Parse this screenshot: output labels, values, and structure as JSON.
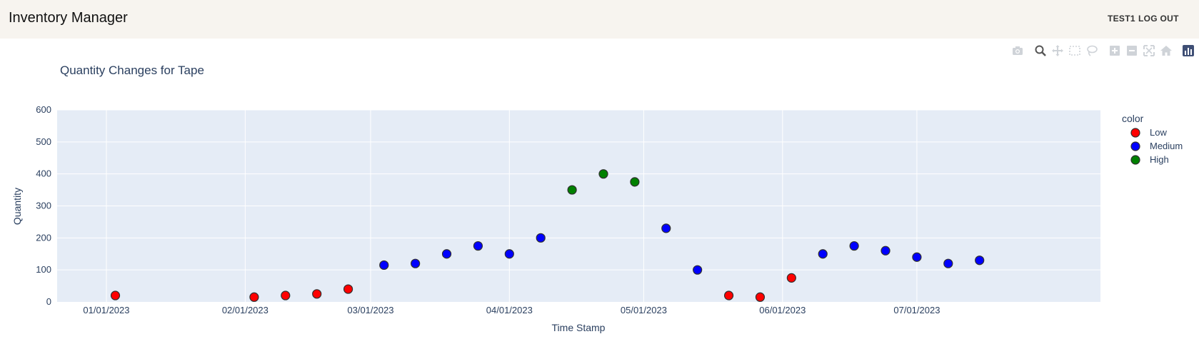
{
  "app": {
    "title": "Inventory Manager"
  },
  "nav": {
    "user_label": "TEST1",
    "logout_label": "LOG OUT"
  },
  "modebar": {
    "icons": [
      "camera-icon",
      "zoom-icon",
      "pan-icon",
      "box-select-icon",
      "lasso-icon",
      "zoom-in-icon",
      "zoom-out-icon",
      "autoscale-icon",
      "reset-axes-icon",
      "plotly-logo-icon"
    ]
  },
  "colors": {
    "appbar_bg": "#f7f4ef",
    "plot_bg": "#e5ecf6",
    "low": "#ff0000",
    "medium": "#0000ff",
    "high": "#008000",
    "text": "#2a3f5f"
  },
  "chart_data": {
    "type": "scatter",
    "title": "Quantity Changes for Tape",
    "xlabel": "Time Stamp",
    "ylabel": "Quantity",
    "ylim": [
      0,
      600
    ],
    "xlim": [
      "2022-12-21",
      "2023-08-11"
    ],
    "x_ticks": [
      {
        "date": "2023-01-01",
        "label": "01/01/2023"
      },
      {
        "date": "2023-02-01",
        "label": "02/01/2023"
      },
      {
        "date": "2023-03-01",
        "label": "03/01/2023"
      },
      {
        "date": "2023-04-01",
        "label": "04/01/2023"
      },
      {
        "date": "2023-05-01",
        "label": "05/01/2023"
      },
      {
        "date": "2023-06-01",
        "label": "06/01/2023"
      },
      {
        "date": "2023-07-01",
        "label": "07/01/2023"
      }
    ],
    "y_ticks": [
      "0",
      "100",
      "200",
      "300",
      "400",
      "500",
      "600"
    ],
    "grid": true,
    "legend": {
      "title": "color",
      "position": "top-right"
    },
    "series": [
      {
        "name": "Low",
        "color": "#ff0000",
        "points": [
          {
            "x": "2023-01-03",
            "y": 20
          },
          {
            "x": "2023-02-03",
            "y": 15
          },
          {
            "x": "2023-02-10",
            "y": 20
          },
          {
            "x": "2023-02-17",
            "y": 25
          },
          {
            "x": "2023-02-24",
            "y": 40
          },
          {
            "x": "2023-05-20",
            "y": 20
          },
          {
            "x": "2023-05-27",
            "y": 15
          },
          {
            "x": "2023-06-03",
            "y": 75
          }
        ]
      },
      {
        "name": "Medium",
        "color": "#0000ff",
        "points": [
          {
            "x": "2023-03-04",
            "y": 115
          },
          {
            "x": "2023-03-11",
            "y": 120
          },
          {
            "x": "2023-03-18",
            "y": 150
          },
          {
            "x": "2023-03-25",
            "y": 175
          },
          {
            "x": "2023-04-01",
            "y": 150
          },
          {
            "x": "2023-04-08",
            "y": 200
          },
          {
            "x": "2023-05-06",
            "y": 230
          },
          {
            "x": "2023-05-13",
            "y": 100
          },
          {
            "x": "2023-06-10",
            "y": 150
          },
          {
            "x": "2023-06-17",
            "y": 175
          },
          {
            "x": "2023-06-24",
            "y": 160
          },
          {
            "x": "2023-07-01",
            "y": 140
          },
          {
            "x": "2023-07-08",
            "y": 120
          },
          {
            "x": "2023-07-15",
            "y": 130
          }
        ]
      },
      {
        "name": "High",
        "color": "#008000",
        "points": [
          {
            "x": "2023-04-15",
            "y": 350
          },
          {
            "x": "2023-04-22",
            "y": 400
          },
          {
            "x": "2023-04-29",
            "y": 375
          }
        ]
      }
    ]
  }
}
